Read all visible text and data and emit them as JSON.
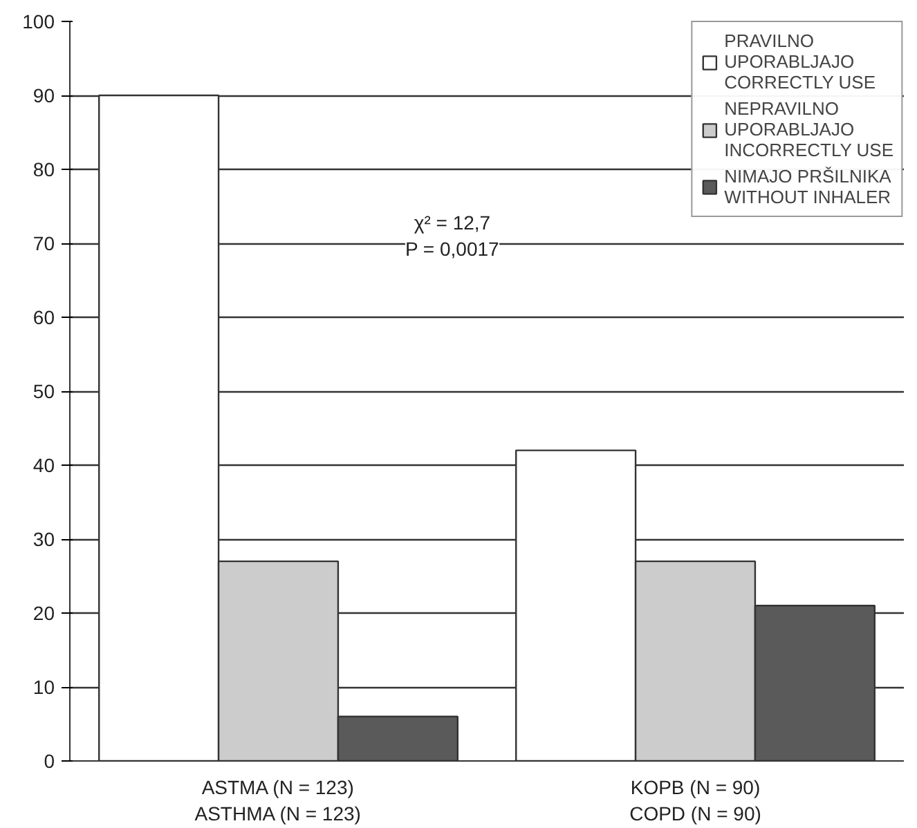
{
  "chart_data": {
    "type": "bar",
    "categories": [
      "ASTMA (N = 123)\nASTHMA (N = 123)",
      "KOPB (N = 90)\nCOPD (N = 90)"
    ],
    "series": [
      {
        "name": "PRAVILNO\nUPORABLJAJO\nCORRECTLY USE",
        "color": "#ffffff",
        "values": [
          90,
          42
        ]
      },
      {
        "name": "NEPRAVILNO\nUPORABLJAJO\nINCORRECTLY USE",
        "color": "#cccccc",
        "values": [
          27,
          27
        ]
      },
      {
        "name": "NIMAJO PRŠILNIKA\nWITHOUT INHALER",
        "color": "#5a5a5a",
        "values": [
          6,
          21
        ]
      }
    ],
    "ylim": [
      0,
      100
    ],
    "yticks": [
      0,
      10,
      20,
      30,
      40,
      50,
      60,
      70,
      80,
      90,
      100
    ],
    "grid": "y",
    "legend": "top right",
    "annotations": [
      "χ² = 12,7\nP = 0,0017"
    ]
  }
}
